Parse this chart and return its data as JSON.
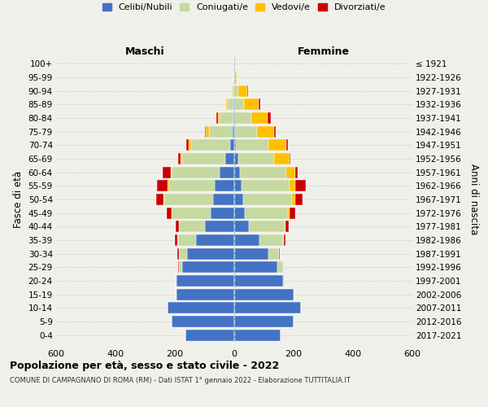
{
  "age_groups": [
    "0-4",
    "5-9",
    "10-14",
    "15-19",
    "20-24",
    "25-29",
    "30-34",
    "35-39",
    "40-44",
    "45-49",
    "50-54",
    "55-59",
    "60-64",
    "65-69",
    "70-74",
    "75-79",
    "80-84",
    "85-89",
    "90-94",
    "95-99",
    "100+"
  ],
  "birth_years": [
    "2017-2021",
    "2012-2016",
    "2007-2011",
    "2002-2006",
    "1997-2001",
    "1992-1996",
    "1987-1991",
    "1982-1986",
    "1977-1981",
    "1972-1976",
    "1967-1971",
    "1962-1966",
    "1957-1961",
    "1952-1956",
    "1947-1951",
    "1942-1946",
    "1937-1941",
    "1932-1936",
    "1927-1931",
    "1922-1926",
    "≤ 1921"
  ],
  "male": {
    "celibi": [
      165,
      210,
      225,
      195,
      195,
      175,
      160,
      130,
      100,
      80,
      70,
      65,
      50,
      30,
      15,
      5,
      3,
      2,
      0,
      0,
      0
    ],
    "coniugati": [
      0,
      0,
      0,
      2,
      3,
      10,
      25,
      60,
      85,
      130,
      165,
      155,
      160,
      145,
      130,
      80,
      45,
      20,
      5,
      2,
      1
    ],
    "vedovi": [
      0,
      0,
      0,
      0,
      0,
      1,
      1,
      1,
      2,
      2,
      3,
      4,
      5,
      5,
      8,
      10,
      8,
      5,
      3,
      1,
      0
    ],
    "divorziati": [
      0,
      0,
      0,
      0,
      0,
      2,
      5,
      10,
      10,
      15,
      25,
      35,
      25,
      10,
      8,
      5,
      3,
      0,
      0,
      0,
      0
    ]
  },
  "female": {
    "nubili": [
      155,
      200,
      225,
      200,
      165,
      145,
      115,
      85,
      50,
      35,
      30,
      25,
      20,
      15,
      5,
      3,
      2,
      2,
      0,
      0,
      0
    ],
    "coniugate": [
      0,
      0,
      0,
      2,
      5,
      20,
      35,
      80,
      120,
      145,
      165,
      160,
      155,
      120,
      110,
      75,
      55,
      30,
      15,
      3,
      1
    ],
    "vedove": [
      0,
      0,
      0,
      0,
      0,
      1,
      1,
      2,
      3,
      5,
      10,
      20,
      30,
      50,
      60,
      55,
      55,
      50,
      30,
      5,
      1
    ],
    "divorziate": [
      0,
      0,
      0,
      0,
      0,
      2,
      3,
      5,
      10,
      20,
      25,
      35,
      10,
      5,
      5,
      8,
      10,
      5,
      2,
      0,
      0
    ]
  },
  "colors": {
    "celibi": "#4472c4",
    "coniugati": "#c5d9a0",
    "vedovi": "#ffc000",
    "divorziati": "#cc0000"
  },
  "legend_labels": [
    "Celibi/Nubili",
    "Coniugati/e",
    "Vedovi/e",
    "Divorziati/e"
  ],
  "title": "Popolazione per età, sesso e stato civile - 2022",
  "subtitle": "COMUNE DI CAMPAGNANO DI ROMA (RM) - Dati ISTAT 1° gennaio 2022 - Elaborazione TUTTITALIA.IT",
  "xlabel_left": "Maschi",
  "xlabel_right": "Femmine",
  "ylabel_left": "Fasce di età",
  "ylabel_right": "Anni di nascita",
  "xlim": 600,
  "background_color": "#f0f0eb"
}
